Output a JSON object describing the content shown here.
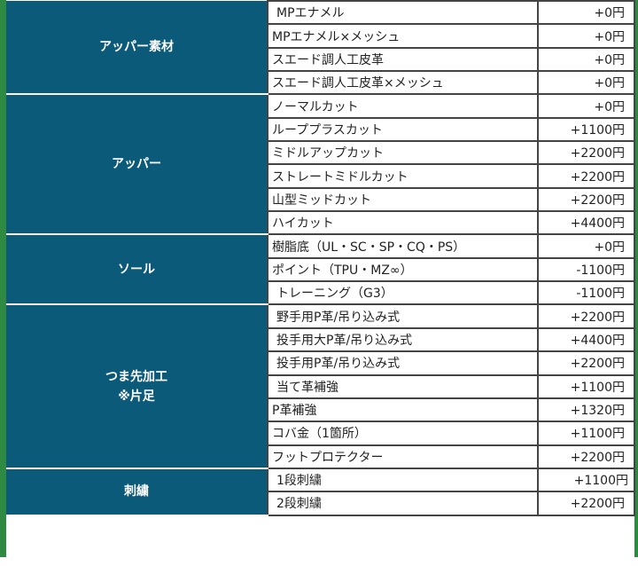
{
  "pricing_table": {
    "groups": [
      {
        "category": [
          "アッパー素材"
        ],
        "items": [
          {
            "name": "MPエナメル",
            "price": "+0円"
          },
          {
            "name": "MPエナメル×メッシュ",
            "price": "+0円"
          },
          {
            "name": "スエード調人工皮革",
            "price": "+0円"
          },
          {
            "name": "スエード調人工皮革×メッシュ",
            "price": "+0円"
          }
        ]
      },
      {
        "category": [
          "アッパー"
        ],
        "items": [
          {
            "name": "ノーマルカット",
            "price": "+0円"
          },
          {
            "name": "ループプラスカット",
            "price": "+1100円"
          },
          {
            "name": "ミドルアップカット",
            "price": "+2200円"
          },
          {
            "name": "ストレートミドルカット",
            "price": "+2200円"
          },
          {
            "name": "山型ミッドカット",
            "price": "+2200円"
          },
          {
            "name": "ハイカット",
            "price": "+4400円"
          }
        ]
      },
      {
        "category": [
          "ソール"
        ],
        "items": [
          {
            "name": "樹脂底（UL・SC・SP・CQ・PS）",
            "price": "+0円"
          },
          {
            "name": "ポイント（TPU・MZ∞）",
            "price": "-1100円"
          },
          {
            "name": "トレーニング（G3）",
            "price": "-1100円"
          }
        ]
      },
      {
        "category": [
          "つま先加工",
          "※片足"
        ],
        "items": [
          {
            "name": "野手用P革/吊り込み式",
            "price": "+2200円"
          },
          {
            "name": "投手用大P革/吊り込み式",
            "price": "+4400円"
          },
          {
            "name": "投手用P革/吊り込み式",
            "price": "+2200円"
          },
          {
            "name": "当て革補強",
            "price": "+1100円"
          },
          {
            "name": "P革補強",
            "price": "+1320円"
          },
          {
            "name": "コバ金（1箇所）",
            "price": "+1100円"
          },
          {
            "name": "フットプロテクター",
            "price": "+2200円"
          }
        ]
      },
      {
        "category": [
          "刺繍"
        ],
        "items": [
          {
            "name": "1段刺繍",
            "price": "+1100円"
          },
          {
            "name": "2段刺繍",
            "price": "+2200円"
          }
        ]
      }
    ]
  },
  "colors": {
    "category_bg": "#0c5a7a",
    "frame": "#2e8a41",
    "cell_border": "#444444"
  }
}
